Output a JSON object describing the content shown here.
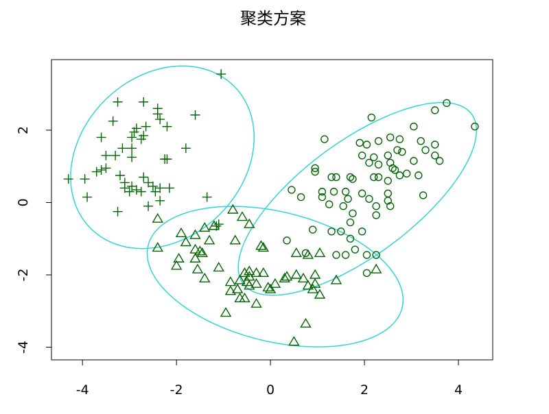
{
  "chart_data": {
    "type": "scatter",
    "title": "聚类方案",
    "xlim": [
      -4.66,
      4.73
    ],
    "ylim": [
      -4.35,
      3.95
    ],
    "xticks": [
      -4,
      -2,
      0,
      2,
      4
    ],
    "yticks": [
      -4,
      -2,
      0,
      2
    ],
    "series": [
      {
        "marker": "plus",
        "color": "#006400",
        "ellipse": {
          "cx": -2.3,
          "cy": 1.25,
          "rx": 2.6,
          "ry": 1.85,
          "angle": 70,
          "color": "#2fd4d4"
        },
        "x": [
          -1.05,
          -3.25,
          -2.7,
          -2.4,
          -2.4,
          -1.6,
          -3.35,
          -2.85,
          -2.65,
          -2.35,
          -2.2,
          -2.9,
          -3.6,
          -2.95,
          -2.7,
          -3.15,
          -2.95,
          -2.75,
          -1.8,
          -3.5,
          -3.3,
          -2.95,
          -2.2,
          -2.25,
          -3.6,
          -3.5,
          -3.7,
          -4.3,
          -3.95,
          -3.2,
          -2.7,
          -2.6,
          -3.1,
          -2.95,
          -3.1,
          -2.85,
          -2.5,
          -2.35,
          -2.15,
          -2.45,
          -3.0,
          -2.75,
          -3.9,
          -1.35,
          -2.6,
          -3.25,
          -1.15,
          -2.35,
          -1.1
        ],
        "values": [
          3.55,
          2.78,
          2.78,
          2.6,
          2.45,
          2.42,
          2.25,
          2.05,
          2.1,
          2.3,
          2.1,
          1.95,
          1.8,
          1.8,
          1.85,
          1.5,
          1.5,
          1.75,
          1.5,
          1.3,
          1.3,
          1.25,
          1.2,
          1.2,
          0.9,
          0.95,
          0.85,
          0.65,
          0.65,
          0.75,
          0.7,
          0.55,
          0.55,
          0.45,
          0.4,
          0.35,
          0.45,
          0.4,
          0.4,
          0.3,
          0.3,
          0.3,
          0.15,
          0.15,
          -0.1,
          -0.25,
          -0.65,
          0.05,
          -0.6
        ]
      },
      {
        "marker": "circle",
        "color": "#006400",
        "ellipse": {
          "cx": 1.85,
          "cy": 0.1,
          "rx": 3.4,
          "ry": 1.4,
          "angle": 47,
          "color": "#2fd4d4"
        },
        "x": [
          3.75,
          4.35,
          3.5,
          2.15,
          3.05,
          1.15,
          2.55,
          2.75,
          3.2,
          1.9,
          2.05,
          2.3,
          2.7,
          2.8,
          3.3,
          3.5,
          1.95,
          2.2,
          2.5,
          3.5,
          2.1,
          2.3,
          2.55,
          3.05,
          3.6,
          2.6,
          0.95,
          0.95,
          2.65,
          2.9,
          2.75,
          3.15,
          1.3,
          1.4,
          1.7,
          1.75,
          2.2,
          2.3,
          2.5,
          0.45,
          1.1,
          1.35,
          1.6,
          1.95,
          2.5,
          0.65,
          1.1,
          1.65,
          2.1,
          2.5,
          3.25,
          1.25,
          1.55,
          2.25,
          2.55,
          1.75,
          2.25,
          1.7,
          0.9,
          1.3,
          1.5,
          1.95,
          1.7,
          0.35,
          1.8,
          0.75,
          1.4,
          1.6,
          2.05,
          2.25,
          2.05
        ],
        "values": [
          2.75,
          2.1,
          2.55,
          2.35,
          2.1,
          1.75,
          1.8,
          1.75,
          1.7,
          1.65,
          1.6,
          1.7,
          1.45,
          1.4,
          1.45,
          1.6,
          1.3,
          1.25,
          1.3,
          1.3,
          1.1,
          1.05,
          1.1,
          1.15,
          1.15,
          0.95,
          0.95,
          0.85,
          0.9,
          0.8,
          0.75,
          0.75,
          0.7,
          0.7,
          0.7,
          0.65,
          0.7,
          0.7,
          0.6,
          0.35,
          0.3,
          0.3,
          0.3,
          0.25,
          0.25,
          0.15,
          0.15,
          0.1,
          0.1,
          0.05,
          0.2,
          -0.05,
          -0.1,
          -0.1,
          -0.1,
          -0.3,
          -0.35,
          -0.55,
          -0.75,
          -0.8,
          -0.8,
          -0.8,
          -1.0,
          -1.05,
          -1.3,
          -1.4,
          -1.45,
          -1.45,
          -1.45,
          -1.45,
          -1.95
        ]
      },
      {
        "marker": "triangle",
        "color": "#006400",
        "ellipse": {
          "cx": 0.1,
          "cy": -2.05,
          "rx": 2.85,
          "ry": 1.75,
          "angle": -22,
          "color": "#2fd4d4"
        },
        "x": [
          -0.8,
          -0.6,
          -0.45,
          -2.4,
          -1.4,
          -1.2,
          -1.9,
          -1.6,
          -0.75,
          -1.3,
          -1.8,
          -1.6,
          -1.5,
          -1.45,
          -2.4,
          -0.2,
          -0.15,
          -1.95,
          -1.6,
          -2.0,
          -1.55,
          -1.1,
          -0.45,
          -0.55,
          -0.3,
          -0.15,
          -1.4,
          -0.45,
          -0.65,
          -0.5,
          -0.85,
          -0.3,
          0.35,
          0.55,
          0.95,
          0.7,
          0.95,
          1.4,
          0.1,
          -0.45,
          -0.7,
          -0.05,
          0.0,
          -0.85,
          0.8,
          0.9,
          -0.65,
          -0.55,
          -0.3,
          1.05,
          -0.95,
          0.75,
          0.5,
          2.25,
          0.3,
          0.55,
          0.8,
          1.05
        ],
        "values": [
          -0.2,
          -0.4,
          -0.6,
          -0.45,
          -0.7,
          -0.65,
          -0.85,
          -0.9,
          -1.05,
          -1.05,
          -1.1,
          -1.3,
          -1.35,
          -1.4,
          -1.25,
          -1.2,
          -1.25,
          -1.55,
          -1.55,
          -1.75,
          -1.85,
          -1.8,
          -1.9,
          -1.95,
          -1.95,
          -1.95,
          -2.1,
          -2.05,
          -2.15,
          -2.2,
          -2.2,
          -2.25,
          -2.05,
          -2.0,
          -2.0,
          -2.1,
          -2.25,
          -2.15,
          -2.25,
          -2.3,
          -2.4,
          -2.35,
          -2.4,
          -2.45,
          -2.3,
          -2.4,
          -2.65,
          -2.65,
          -2.8,
          -2.55,
          -3.05,
          -3.35,
          -3.85,
          -1.85,
          -2.1,
          -1.4,
          -1.45,
          -1.4
        ]
      }
    ]
  }
}
